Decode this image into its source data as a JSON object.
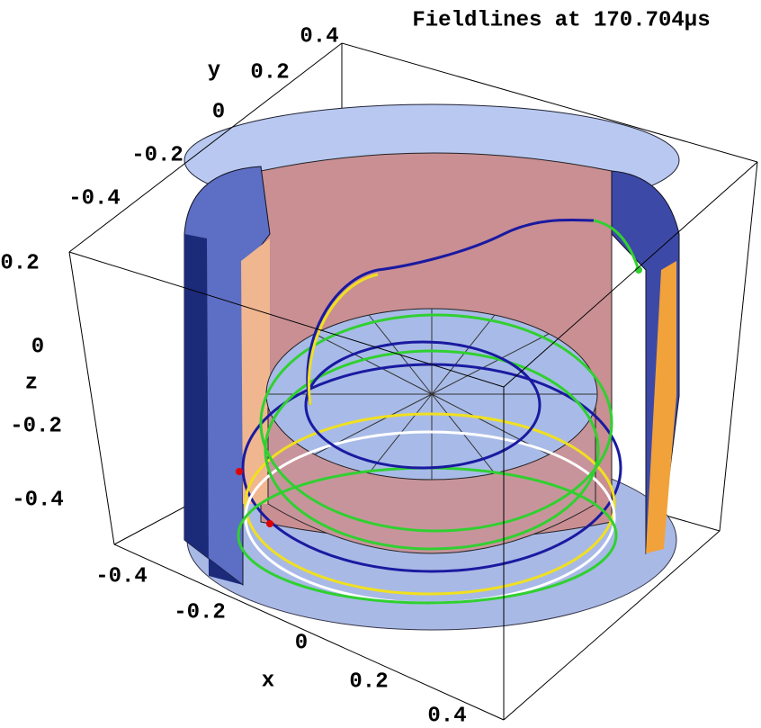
{
  "title": "Fieldlines at 170.704µs",
  "axes": {
    "x": {
      "label": "x",
      "ticks": [
        -0.4,
        -0.2,
        0,
        0.2,
        0.4
      ]
    },
    "y": {
      "label": "y",
      "ticks": [
        0.4,
        0.2,
        0,
        -0.2,
        -0.4
      ]
    },
    "z": {
      "label": "z",
      "ticks": [
        0.2,
        0,
        -0.2,
        -0.4
      ]
    }
  }
}
